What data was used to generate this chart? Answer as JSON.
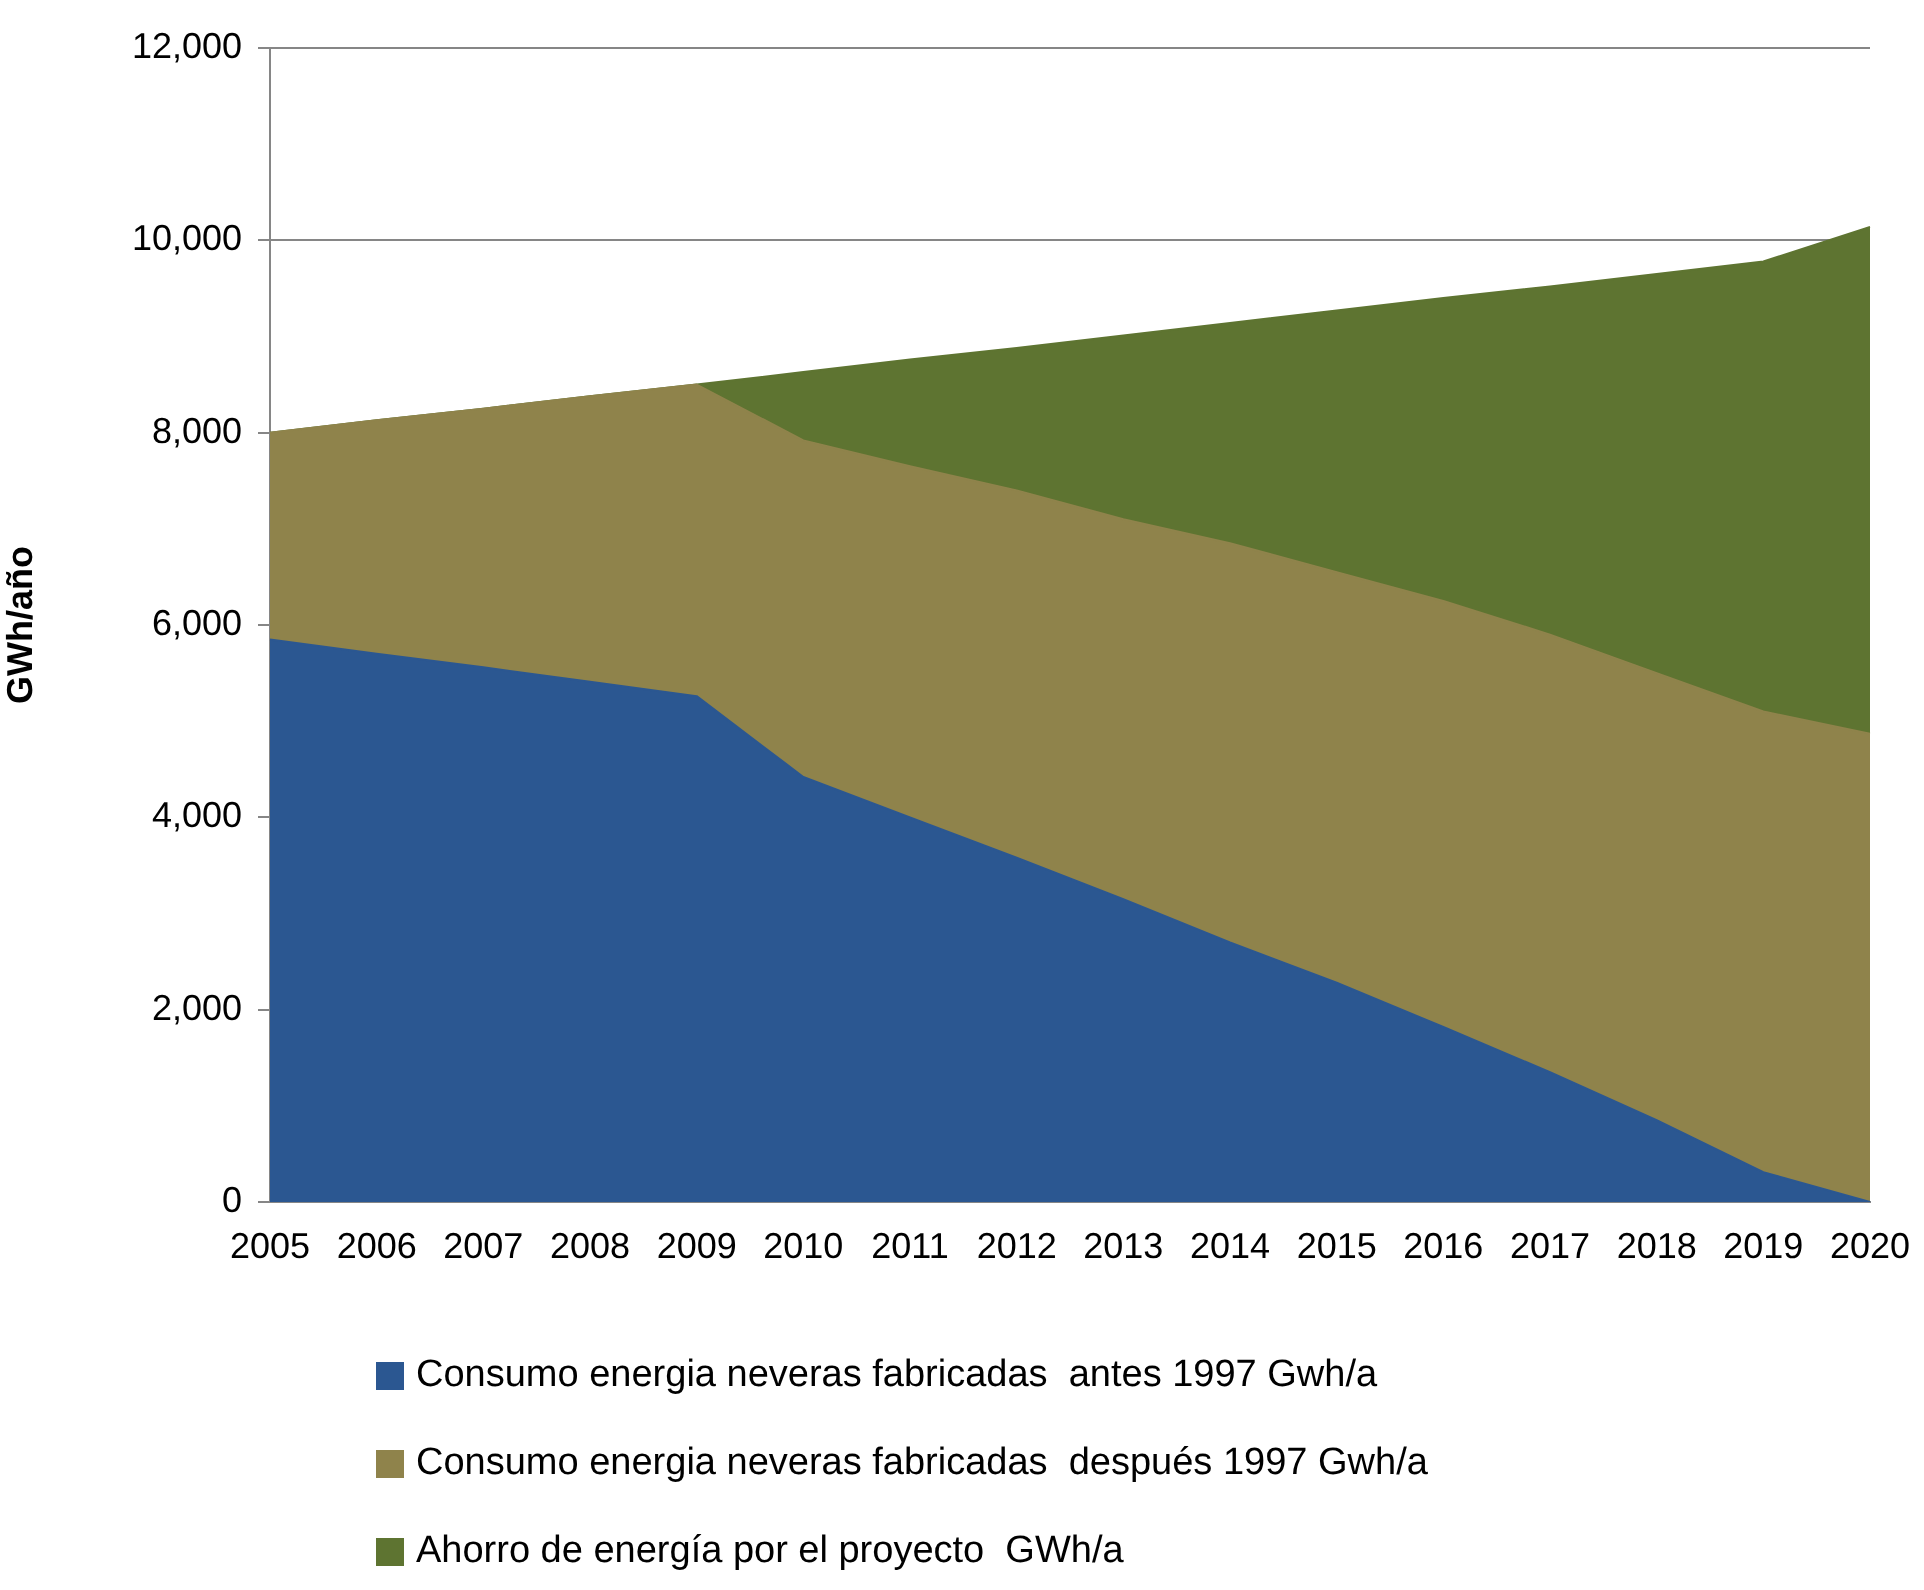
{
  "chart_data": {
    "type": "area",
    "stacked": true,
    "ylabel": "GWh/año",
    "categories": [
      "2005",
      "2006",
      "2007",
      "2008",
      "2009",
      "2010",
      "2011",
      "2012",
      "2013",
      "2014",
      "2015",
      "2016",
      "2017",
      "2018",
      "2019",
      "2020"
    ],
    "series": [
      {
        "name": "Consumo energia neveras fabricadas  antes 1997 Gwh/a",
        "color": "#2b5791",
        "values": [
          5850,
          5700,
          5560,
          5410,
          5260,
          4420,
          4000,
          3580,
          3150,
          2700,
          2280,
          1820,
          1350,
          850,
          310,
          0
        ]
      },
      {
        "name": "Consumo energia neveras fabricadas  después 1997 Gwh/a",
        "color": "#8f834b",
        "values": [
          2150,
          2430,
          2690,
          2970,
          3240,
          3500,
          3650,
          3820,
          3950,
          4150,
          4270,
          4430,
          4550,
          4650,
          4790,
          4870
        ]
      },
      {
        "name": "Ahorro de energía por el proyecto  GWh/a",
        "color": "#5e7431",
        "values": [
          0,
          0,
          0,
          0,
          0,
          710,
          1110,
          1480,
          1910,
          2290,
          2720,
          3150,
          3620,
          4150,
          4680,
          5270
        ]
      }
    ],
    "ylim": [
      0,
      12000
    ],
    "yticks": [
      {
        "value": 0,
        "label": "0"
      },
      {
        "value": 2000,
        "label": "2,000"
      },
      {
        "value": 4000,
        "label": "4,000"
      },
      {
        "value": 6000,
        "label": "6,000"
      },
      {
        "value": 8000,
        "label": "8,000"
      },
      {
        "value": 10000,
        "label": "10,000"
      },
      {
        "value": 12000,
        "label": "12,000"
      }
    ],
    "grid": "y",
    "legend": "bottom"
  }
}
